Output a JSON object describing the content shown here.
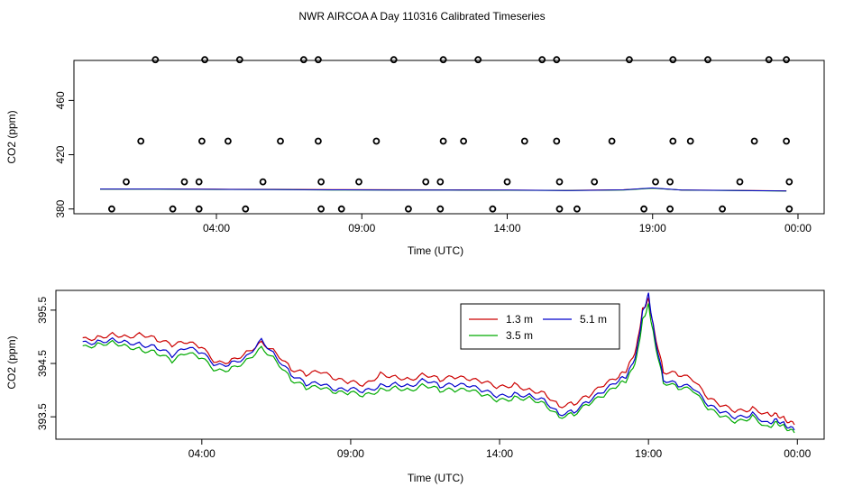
{
  "title": "NWR AIRCOA A  Day 110316  Calibrated Timeseries",
  "chart_data": [
    {
      "type": "scatter",
      "xlabel": "Time (UTC)",
      "ylabel": "CO2 (ppm)",
      "x_ticks": [
        4,
        9,
        14,
        19,
        24
      ],
      "x_tick_labels": [
        "04:00",
        "09:00",
        "14:00",
        "19:00",
        "00:00"
      ],
      "xlim": [
        -0.9,
        24.9
      ],
      "y_ticks": [
        380,
        420,
        460
      ],
      "y_tick_labels": [
        "380",
        "420",
        "460"
      ],
      "ylim": [
        376.5,
        489.5
      ],
      "markers": {
        "name": "standards",
        "points": [
          [
            0.4,
            380
          ],
          [
            0.9,
            400
          ],
          [
            1.4,
            430
          ],
          [
            1.9,
            490
          ],
          [
            2.5,
            380
          ],
          [
            2.9,
            400
          ],
          [
            3.4,
            380
          ],
          [
            3.4,
            400
          ],
          [
            3.5,
            430
          ],
          [
            3.6,
            490
          ],
          [
            4.4,
            430
          ],
          [
            5.0,
            380
          ],
          [
            4.8,
            490
          ],
          [
            5.6,
            400
          ],
          [
            6.2,
            430
          ],
          [
            7.0,
            490
          ],
          [
            7.5,
            490
          ],
          [
            7.5,
            430
          ],
          [
            7.6,
            400
          ],
          [
            7.6,
            380
          ],
          [
            8.3,
            380
          ],
          [
            8.9,
            400
          ],
          [
            9.5,
            430
          ],
          [
            10.1,
            490
          ],
          [
            10.6,
            380
          ],
          [
            11.2,
            400
          ],
          [
            11.7,
            400
          ],
          [
            11.8,
            430
          ],
          [
            11.8,
            490
          ],
          [
            11.7,
            380
          ],
          [
            12.5,
            430
          ],
          [
            13.0,
            490
          ],
          [
            13.5,
            380
          ],
          [
            14.0,
            400
          ],
          [
            14.6,
            430
          ],
          [
            15.2,
            490
          ],
          [
            15.7,
            490
          ],
          [
            15.7,
            430
          ],
          [
            15.8,
            400
          ],
          [
            15.8,
            380
          ],
          [
            16.4,
            380
          ],
          [
            17.0,
            400
          ],
          [
            17.6,
            430
          ],
          [
            18.2,
            490
          ],
          [
            18.7,
            380
          ],
          [
            19.1,
            400
          ],
          [
            19.6,
            380
          ],
          [
            19.6,
            400
          ],
          [
            19.7,
            430
          ],
          [
            19.7,
            490
          ],
          [
            20.3,
            430
          ],
          [
            20.9,
            490
          ],
          [
            21.4,
            380
          ],
          [
            22.0,
            400
          ],
          [
            22.5,
            430
          ],
          [
            23.0,
            490
          ],
          [
            23.6,
            490
          ],
          [
            23.6,
            430
          ],
          [
            23.7,
            400
          ],
          [
            23.7,
            380
          ]
        ]
      },
      "series": [
        {
          "name": "1.3 m",
          "color": "#cc0000",
          "x": [
            0,
            2,
            4,
            6,
            8,
            10,
            12,
            14,
            16,
            18,
            19,
            20,
            22,
            23.6
          ],
          "y": [
            394.7,
            394.8,
            394.6,
            394.5,
            394.3,
            394.2,
            394.1,
            394.0,
            393.7,
            394.2,
            395.4,
            394.0,
            393.7,
            393.4
          ]
        },
        {
          "name": "3.5 m",
          "color": "#00aa00",
          "x": [
            0,
            2,
            4,
            6,
            8,
            10,
            12,
            14,
            16,
            18,
            19,
            20,
            22,
            23.6
          ],
          "y": [
            394.6,
            394.6,
            394.4,
            394.3,
            394.0,
            393.9,
            393.9,
            393.8,
            393.6,
            394.0,
            395.3,
            393.9,
            393.5,
            393.2
          ]
        },
        {
          "name": "5.1 m",
          "color": "#0000cc",
          "x": [
            0,
            2,
            4,
            6,
            8,
            10,
            12,
            14,
            16,
            18,
            19,
            20,
            22,
            23.6
          ],
          "y": [
            394.7,
            394.7,
            394.5,
            394.4,
            394.1,
            394.0,
            394.0,
            393.9,
            393.6,
            394.1,
            395.5,
            394.0,
            393.6,
            393.3
          ]
        }
      ]
    },
    {
      "type": "line",
      "xlabel": "Time (UTC)",
      "ylabel": "CO2 (ppm)",
      "x_ticks": [
        4,
        9,
        14,
        19,
        24
      ],
      "x_tick_labels": [
        "04:00",
        "09:00",
        "14:00",
        "19:00",
        "00:00"
      ],
      "xlim": [
        -0.9,
        24.9
      ],
      "y_ticks": [
        393.5,
        394.5,
        395.5
      ],
      "y_tick_labels": [
        "393.5",
        "394.5",
        "395.5"
      ],
      "ylim": [
        393.08,
        395.87
      ],
      "legend": "top-right",
      "series": [
        {
          "name": "1.3 m",
          "color": "#cc0000",
          "x": [
            0,
            0.5,
            1,
            1.5,
            2,
            2.5,
            3,
            3.5,
            4,
            4.5,
            5,
            5.5,
            6,
            6.5,
            7,
            7.5,
            8,
            8.5,
            9,
            9.5,
            10,
            10.5,
            11,
            11.5,
            12,
            12.5,
            13,
            13.5,
            14,
            14.5,
            15,
            15.5,
            16,
            16.5,
            17,
            17.5,
            18,
            18.3,
            18.6,
            18.8,
            19,
            19.2,
            19.5,
            20,
            20.5,
            21,
            21.5,
            22,
            22.5,
            23,
            23.3,
            23.6,
            23.9
          ],
          "y": [
            394.95,
            394.98,
            395.05,
            395.0,
            395.05,
            394.95,
            394.85,
            394.9,
            394.8,
            394.5,
            394.55,
            394.7,
            394.9,
            394.7,
            394.4,
            394.3,
            394.35,
            394.2,
            394.15,
            394.1,
            394.3,
            394.25,
            394.2,
            394.3,
            394.2,
            394.25,
            394.2,
            394.15,
            394.05,
            394.1,
            394.0,
            393.95,
            393.7,
            393.75,
            393.9,
            394.1,
            394.25,
            394.4,
            394.8,
            395.5,
            395.7,
            395.1,
            394.35,
            394.3,
            394.2,
            393.85,
            393.7,
            393.6,
            393.65,
            393.55,
            393.55,
            393.45,
            393.35
          ]
        },
        {
          "name": "3.5 m",
          "color": "#00aa00",
          "x": [
            0,
            0.5,
            1,
            1.5,
            2,
            2.5,
            3,
            3.5,
            4,
            4.5,
            5,
            5.5,
            6,
            6.5,
            7,
            7.5,
            8,
            8.5,
            9,
            9.5,
            10,
            10.5,
            11,
            11.5,
            12,
            12.5,
            13,
            13.5,
            14,
            14.5,
            15,
            15.5,
            16,
            16.5,
            17,
            17.5,
            18,
            18.3,
            18.6,
            18.8,
            19,
            19.2,
            19.5,
            20,
            20.5,
            21,
            21.5,
            22,
            22.5,
            23,
            23.3,
            23.6,
            23.9
          ],
          "y": [
            394.8,
            394.85,
            394.9,
            394.82,
            394.75,
            394.7,
            394.55,
            394.7,
            394.6,
            394.35,
            394.4,
            394.55,
            394.8,
            394.55,
            394.2,
            394.05,
            394.05,
            393.95,
            393.95,
            393.9,
            394.0,
            394.05,
            394.0,
            394.1,
            394.0,
            394.0,
            394.0,
            393.9,
            393.8,
            393.85,
            393.85,
            393.75,
            393.5,
            393.55,
            393.75,
            393.9,
            394.1,
            394.2,
            394.6,
            395.3,
            395.6,
            394.95,
            394.15,
            394.05,
            394.0,
            393.65,
            393.5,
            393.4,
            393.5,
            393.3,
            393.4,
            393.3,
            393.2
          ]
        },
        {
          "name": "5.1 m",
          "color": "#0000cc",
          "x": [
            0,
            0.5,
            1,
            1.5,
            2,
            2.5,
            3,
            3.5,
            4,
            4.5,
            5,
            5.5,
            6,
            6.5,
            7,
            7.5,
            8,
            8.5,
            9,
            9.5,
            10,
            10.5,
            11,
            11.5,
            12,
            12.5,
            13,
            13.5,
            14,
            14.5,
            15,
            15.5,
            16,
            16.5,
            17,
            17.5,
            18,
            18.3,
            18.6,
            18.8,
            19,
            19.2,
            19.5,
            20,
            20.5,
            21,
            21.5,
            22,
            22.5,
            23,
            23.3,
            23.6,
            23.9
          ],
          "y": [
            394.88,
            394.9,
            394.95,
            394.9,
            394.85,
            394.8,
            394.65,
            394.8,
            394.7,
            394.45,
            394.5,
            394.62,
            394.95,
            394.62,
            394.3,
            394.12,
            394.12,
            394.0,
            394.02,
            393.98,
            394.08,
            394.12,
            394.08,
            394.2,
            394.08,
            394.1,
            394.08,
            393.98,
            393.88,
            393.92,
            393.9,
            393.82,
            393.55,
            393.6,
            393.8,
            393.98,
            394.18,
            394.28,
            394.7,
            395.45,
            395.8,
            395.05,
            394.2,
            394.1,
            394.05,
            393.72,
            393.58,
            393.48,
            393.55,
            393.38,
            393.45,
            393.35,
            393.25
          ]
        }
      ]
    }
  ]
}
